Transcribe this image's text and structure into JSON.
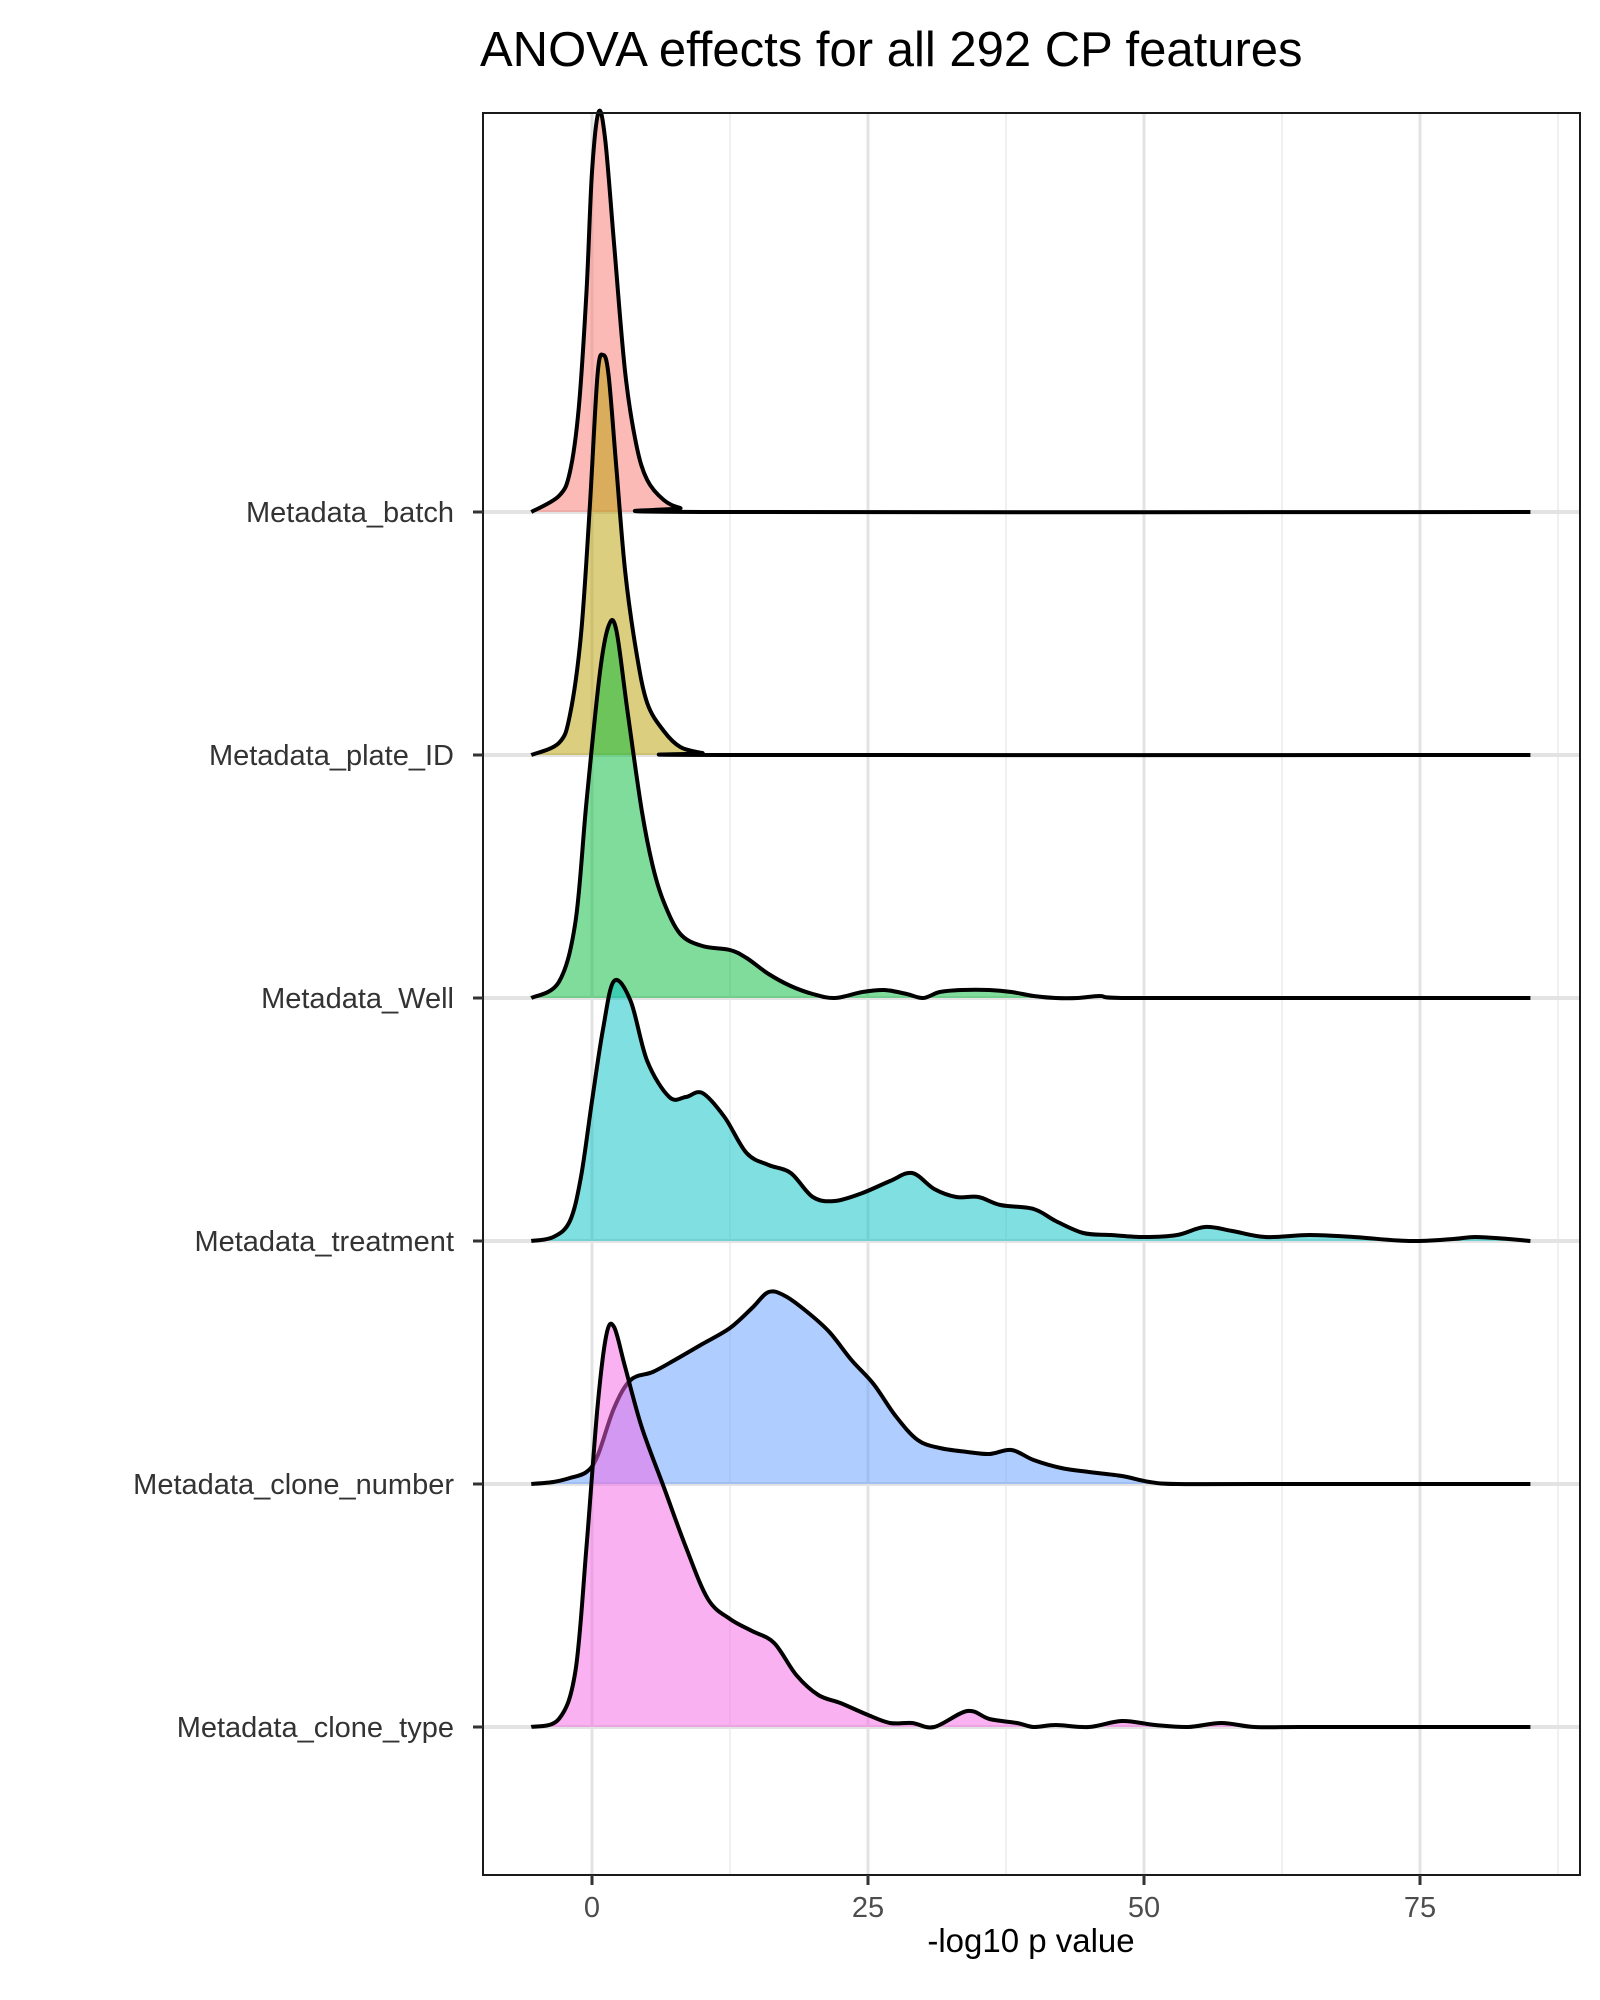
{
  "chart_data": {
    "type": "ridgeline",
    "title": "ANOVA effects for all 292 CP features",
    "xlabel": "-log10 p value",
    "ylabel": "",
    "xlim": [
      -10,
      89
    ],
    "x_ticks": [
      0,
      25,
      50,
      75
    ],
    "x_tick_labels": [
      "0",
      "25",
      "50",
      "75"
    ],
    "grid": true,
    "legend": "none",
    "fill_opacity": 0.5,
    "outline_color": "#000000",
    "categories": [
      "Metadata_clone_type",
      "Metadata_clone_number",
      "Metadata_treatment",
      "Metadata_Well",
      "Metadata_plate_ID",
      "Metadata_batch"
    ],
    "series": [
      {
        "name": "Metadata_clone_type",
        "color": "#F564E3",
        "density": [
          [
            -5.5,
            0
          ],
          [
            -3,
            0.02
          ],
          [
            -1.5,
            0.14
          ],
          [
            -0.5,
            0.45
          ],
          [
            0.5,
            0.8
          ],
          [
            1.3,
            0.98
          ],
          [
            2,
            1.0
          ],
          [
            3,
            0.9
          ],
          [
            4.5,
            0.75
          ],
          [
            6.5,
            0.6
          ],
          [
            8.5,
            0.45
          ],
          [
            10.5,
            0.32
          ],
          [
            12.5,
            0.27
          ],
          [
            14.5,
            0.24
          ],
          [
            16.5,
            0.21
          ],
          [
            18.5,
            0.13
          ],
          [
            20.5,
            0.08
          ],
          [
            22.5,
            0.06
          ],
          [
            25,
            0.03
          ],
          [
            27,
            0.01
          ],
          [
            29,
            0.01
          ],
          [
            31,
            0.0
          ],
          [
            34,
            0.04
          ],
          [
            36,
            0.02
          ],
          [
            38.5,
            0.01
          ],
          [
            40,
            0.0
          ],
          [
            42,
            0.005
          ],
          [
            45,
            0.0
          ],
          [
            48,
            0.015
          ],
          [
            51,
            0.005
          ],
          [
            54,
            0.0
          ],
          [
            57,
            0.01
          ],
          [
            60,
            0.0
          ],
          [
            64,
            0.0
          ],
          [
            70,
            0.0
          ],
          [
            85,
            0.0
          ]
        ]
      },
      {
        "name": "Metadata_clone_number",
        "color": "#619CFF",
        "density": [
          [
            -5.5,
            0
          ],
          [
            -3.5,
            0.005
          ],
          [
            -2,
            0.015
          ],
          [
            -0.5,
            0.03
          ],
          [
            0.5,
            0.07
          ],
          [
            2,
            0.19
          ],
          [
            3.5,
            0.26
          ],
          [
            5.5,
            0.28
          ],
          [
            7.5,
            0.31
          ],
          [
            10,
            0.35
          ],
          [
            12.5,
            0.39
          ],
          [
            14.5,
            0.44
          ],
          [
            16,
            0.48
          ],
          [
            17.5,
            0.47
          ],
          [
            19.5,
            0.43
          ],
          [
            21.5,
            0.38
          ],
          [
            23.5,
            0.31
          ],
          [
            25.5,
            0.25
          ],
          [
            27.5,
            0.17
          ],
          [
            29.5,
            0.11
          ],
          [
            31.5,
            0.09
          ],
          [
            34,
            0.08
          ],
          [
            36,
            0.075
          ],
          [
            38,
            0.085
          ],
          [
            40,
            0.06
          ],
          [
            42.5,
            0.04
          ],
          [
            45,
            0.03
          ],
          [
            48,
            0.02
          ],
          [
            50.5,
            0.005
          ],
          [
            53,
            0.0
          ],
          [
            60,
            0.0
          ],
          [
            85,
            0.0
          ]
        ]
      },
      {
        "name": "Metadata_treatment",
        "color": "#00BFC4",
        "density": [
          [
            -5.5,
            0
          ],
          [
            -3.5,
            0.01
          ],
          [
            -2,
            0.05
          ],
          [
            -1,
            0.16
          ],
          [
            0,
            0.35
          ],
          [
            1,
            0.53
          ],
          [
            2,
            0.65
          ],
          [
            3.5,
            0.6
          ],
          [
            5,
            0.45
          ],
          [
            7,
            0.36
          ],
          [
            8.5,
            0.36
          ],
          [
            10,
            0.37
          ],
          [
            12,
            0.31
          ],
          [
            14,
            0.22
          ],
          [
            16,
            0.19
          ],
          [
            18,
            0.17
          ],
          [
            20,
            0.11
          ],
          [
            22,
            0.1
          ],
          [
            24.5,
            0.12
          ],
          [
            27,
            0.15
          ],
          [
            29,
            0.17
          ],
          [
            31,
            0.13
          ],
          [
            33,
            0.11
          ],
          [
            35,
            0.11
          ],
          [
            37,
            0.09
          ],
          [
            40,
            0.08
          ],
          [
            42,
            0.05
          ],
          [
            44.5,
            0.02
          ],
          [
            47,
            0.015
          ],
          [
            50,
            0.01
          ],
          [
            53,
            0.015
          ],
          [
            55.5,
            0.035
          ],
          [
            58,
            0.025
          ],
          [
            61,
            0.01
          ],
          [
            65,
            0.015
          ],
          [
            69,
            0.01
          ],
          [
            74,
            0.0
          ],
          [
            78,
            0.005
          ],
          [
            80,
            0.01
          ],
          [
            83,
            0.005
          ],
          [
            85,
            0.0
          ]
        ]
      },
      {
        "name": "Metadata_Well",
        "color": "#00BA38",
        "density": [
          [
            -5.5,
            0
          ],
          [
            -3,
            0.04
          ],
          [
            -1.5,
            0.19
          ],
          [
            -0.5,
            0.49
          ],
          [
            0.7,
            0.81
          ],
          [
            1.5,
            0.93
          ],
          [
            2.2,
            0.92
          ],
          [
            3.2,
            0.72
          ],
          [
            4.5,
            0.47
          ],
          [
            5.5,
            0.33
          ],
          [
            6.5,
            0.24
          ],
          [
            8,
            0.16
          ],
          [
            10,
            0.13
          ],
          [
            12.5,
            0.12
          ],
          [
            14,
            0.1
          ],
          [
            16,
            0.06
          ],
          [
            18,
            0.03
          ],
          [
            20,
            0.01
          ],
          [
            22,
            0.0
          ],
          [
            24.5,
            0.015
          ],
          [
            26.5,
            0.02
          ],
          [
            28.5,
            0.01
          ],
          [
            30,
            0.0
          ],
          [
            31.5,
            0.015
          ],
          [
            33.5,
            0.02
          ],
          [
            36,
            0.02
          ],
          [
            38,
            0.015
          ],
          [
            40,
            0.005
          ],
          [
            42,
            0.0
          ],
          [
            44,
            0.0
          ],
          [
            46,
            0.005
          ],
          [
            48,
            0.0
          ],
          [
            60,
            0.0
          ],
          [
            85,
            0.0
          ]
        ]
      },
      {
        "name": "Metadata_plate_ID",
        "color": "#B79F00",
        "density": [
          [
            -5.5,
            0
          ],
          [
            -3,
            0.03
          ],
          [
            -2,
            0.1
          ],
          [
            -1,
            0.3
          ],
          [
            -0.2,
            0.62
          ],
          [
            0.5,
            0.95
          ],
          [
            1,
            1.0
          ],
          [
            1.5,
            0.95
          ],
          [
            2.2,
            0.72
          ],
          [
            3,
            0.46
          ],
          [
            4,
            0.26
          ],
          [
            5,
            0.13
          ],
          [
            6.5,
            0.06
          ],
          [
            8,
            0.02
          ],
          [
            10,
            0.005
          ],
          [
            12,
            0.0
          ],
          [
            85,
            0.0
          ]
        ]
      },
      {
        "name": "Metadata_batch",
        "color": "#F8766D",
        "density": [
          [
            -5.5,
            0
          ],
          [
            -3,
            0.04
          ],
          [
            -2,
            0.1
          ],
          [
            -1.2,
            0.26
          ],
          [
            -0.5,
            0.55
          ],
          [
            0,
            0.85
          ],
          [
            0.6,
            1.0
          ],
          [
            1.2,
            0.93
          ],
          [
            2,
            0.67
          ],
          [
            3,
            0.35
          ],
          [
            4,
            0.17
          ],
          [
            5,
            0.08
          ],
          [
            6.5,
            0.03
          ],
          [
            8,
            0.01
          ],
          [
            10,
            0.0
          ],
          [
            85,
            0.0
          ]
        ]
      }
    ]
  }
}
